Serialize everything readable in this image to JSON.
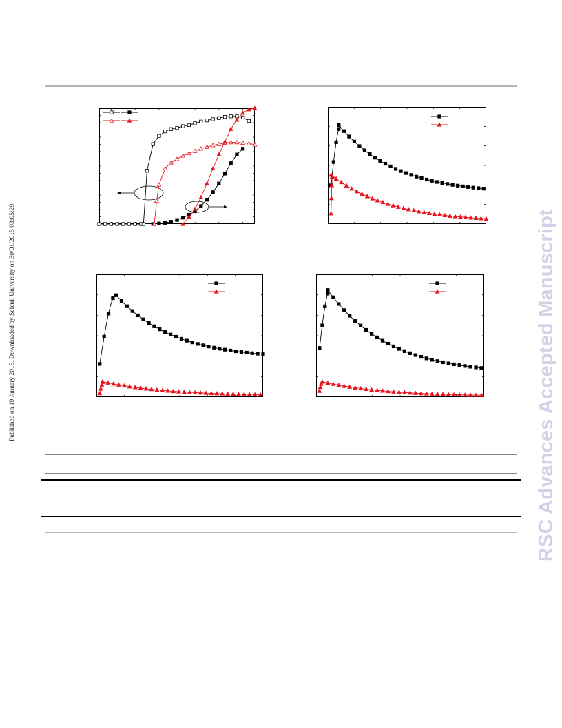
{
  "side_note": "Published on 19 January 2015. Downloaded by Selcuk University on 30/01/2015 03:05:29.",
  "watermark": "RSC Advances Accepted Manuscript",
  "colors": {
    "black": "#000000",
    "red": "#e8141c",
    "rule_grey": "#b5b5b5",
    "watermark": "#d0d3e6"
  },
  "chart_data": [
    {
      "type": "line",
      "title": "",
      "xlabel": "",
      "ylabel": "",
      "xlim": [
        0,
        13
      ],
      "ylim": [
        0,
        10
      ],
      "grid": false,
      "legend": "top-left",
      "annotations": [
        "ellipse with left arrow around open-marker curves",
        "ellipse with right arrow around filled-marker curves"
      ],
      "series": [
        {
          "name": "",
          "color": "#000000",
          "marker": "open-square",
          "x": [
            0,
            0.5,
            1,
            1.5,
            2,
            2.5,
            3,
            3.5,
            3.7,
            4,
            4.5,
            5,
            5.5,
            6,
            6.5,
            7,
            7.5,
            8,
            8.5,
            9,
            9.5,
            10,
            10.5,
            11,
            11.5,
            12,
            12.5
          ],
          "y": [
            0,
            0,
            0,
            0,
            0,
            0,
            0,
            0,
            0,
            4.6,
            6.9,
            7.6,
            8.0,
            8.2,
            8.3,
            8.45,
            8.55,
            8.7,
            8.85,
            8.95,
            9.05,
            9.15,
            9.25,
            9.3,
            9.3,
            9.2,
            8.9
          ]
        },
        {
          "name": "",
          "color": "#000000",
          "marker": "filled-square",
          "x": [
            4.5,
            5,
            5.5,
            6,
            6.5,
            7,
            7.5,
            8,
            8.5,
            9,
            9.5,
            10,
            10.5,
            11,
            11.5,
            12
          ],
          "y": [
            0,
            0.05,
            0.1,
            0.2,
            0.35,
            0.55,
            0.8,
            1.1,
            1.55,
            2.1,
            2.75,
            3.5,
            4.35,
            5.25,
            6.0,
            6.5
          ]
        },
        {
          "name": "",
          "color": "#e8141c",
          "marker": "open-triangle",
          "x": [
            4.6,
            4.8,
            5,
            5.5,
            6,
            6.5,
            7,
            7.5,
            8,
            8.5,
            9,
            9.5,
            10,
            10.5,
            11,
            11.5,
            12,
            12.5,
            13
          ],
          "y": [
            0,
            2.0,
            3.4,
            4.8,
            5.3,
            5.6,
            5.9,
            6.1,
            6.3,
            6.5,
            6.65,
            6.8,
            6.9,
            7.0,
            7.05,
            7.05,
            7.0,
            6.95,
            6.85
          ]
        },
        {
          "name": "",
          "color": "#e8141c",
          "marker": "filled-triangle",
          "x": [
            7,
            7.5,
            8,
            8.5,
            9,
            9.5,
            10,
            10.5,
            11,
            11.5,
            12,
            12.5,
            13
          ],
          "y": [
            0,
            0.6,
            1.3,
            2.3,
            3.5,
            4.8,
            6.0,
            7.1,
            8.2,
            9.0,
            9.6,
            9.9,
            10.0
          ]
        }
      ]
    },
    {
      "type": "line",
      "title": "",
      "xlabel": "",
      "ylabel": "",
      "xlim": [
        0,
        10
      ],
      "ylim": [
        0,
        10
      ],
      "grid": false,
      "legend": "top-right",
      "series": [
        {
          "name": "",
          "color": "#000000",
          "marker": "filled-square",
          "peak": {
            "x": 0.65,
            "y": 8.5
          },
          "start": 3.3,
          "end_y": 3.0
        },
        {
          "name": "",
          "color": "#e8141c",
          "marker": "filled-triangle",
          "peak": {
            "x": 0.1,
            "y": 4.3
          },
          "start": 0.9,
          "end_y": 0.45
        }
      ]
    },
    {
      "type": "line",
      "title": "",
      "xlabel": "",
      "ylabel": "",
      "xlim": [
        0,
        10
      ],
      "ylim": [
        0,
        10
      ],
      "grid": false,
      "legend": "top-right",
      "series": [
        {
          "name": "",
          "color": "#000000",
          "marker": "filled-square",
          "peak": {
            "x": 1.05,
            "y": 8.5
          },
          "start": 2.7,
          "end_y": 3.5
        },
        {
          "name": "",
          "color": "#e8141c",
          "marker": "filled-triangle",
          "peak": {
            "x": 0.25,
            "y": 1.3
          },
          "start": 0.3,
          "end_y": 0.2
        }
      ]
    },
    {
      "type": "line",
      "title": "",
      "xlabel": "",
      "ylabel": "",
      "xlim": [
        0,
        10
      ],
      "ylim": [
        0,
        10
      ],
      "grid": false,
      "legend": "top-right",
      "series": [
        {
          "name": "",
          "color": "#000000",
          "marker": "filled-square",
          "peak": {
            "x": 0.65,
            "y": 8.8
          },
          "start": 4.0,
          "end_y": 2.35
        },
        {
          "name": "",
          "color": "#e8141c",
          "marker": "filled-triangle",
          "peak": {
            "x": 0.2,
            "y": 1.3
          },
          "start": 0.5,
          "end_y": 0.15
        }
      ]
    }
  ]
}
